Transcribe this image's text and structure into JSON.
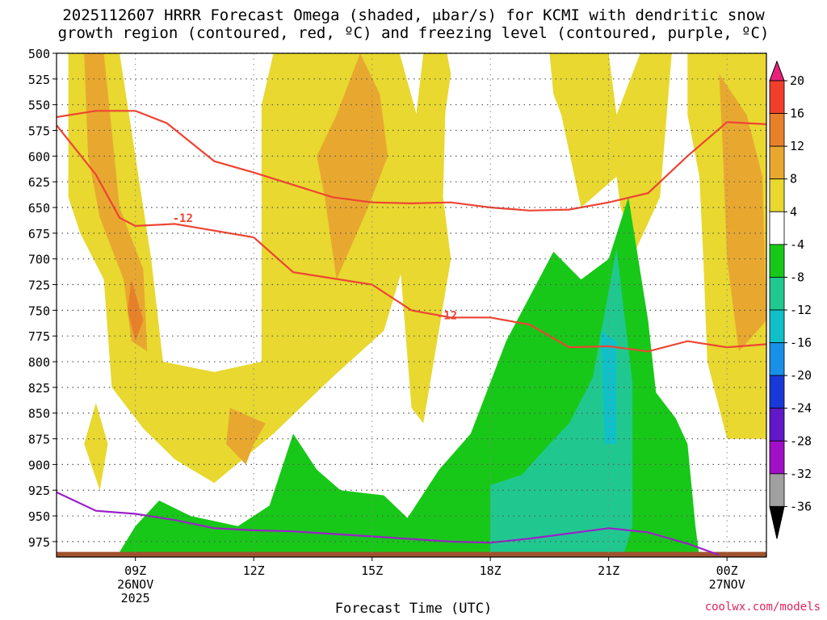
{
  "chart_data": {
    "type": "area",
    "title_line1": "2025112607 HRRR Forecast Omega (shaded, μbar/s) for KCMI with dendritic snow",
    "title_line2": "growth region (contoured, red, ºC) and freezing level (contoured, purple, ºC)",
    "xlabel": "Forecast Time (UTC)",
    "x_ticks": [
      {
        "hour": 9,
        "label": "09Z",
        "date": "26NOV",
        "year": "2025"
      },
      {
        "hour": 12,
        "label": "12Z"
      },
      {
        "hour": 15,
        "label": "15Z"
      },
      {
        "hour": 18,
        "label": "18Z"
      },
      {
        "hour": 21,
        "label": "21Z"
      },
      {
        "hour": 24,
        "label": "00Z",
        "date": "27NOV"
      }
    ],
    "xlim_hours": [
      7,
      25
    ],
    "y_axis": "pressure (mb)",
    "y_ticks": [
      500,
      525,
      550,
      575,
      600,
      625,
      650,
      675,
      700,
      725,
      750,
      775,
      800,
      825,
      850,
      875,
      900,
      925,
      950,
      975
    ],
    "ylim": [
      500,
      990
    ],
    "grid": true,
    "colorbar": {
      "labels": [
        "20",
        "16",
        "12",
        "8",
        "4",
        "-4",
        "-8",
        "-12",
        "-16",
        "-20",
        "-24",
        "-28",
        "-32",
        "-36"
      ],
      "colors": [
        "#e8207a",
        "#f0402a",
        "#e8802a",
        "#e8a830",
        "#e8d830",
        "#ffffff",
        "#18c818",
        "#20c890",
        "#10c0c8",
        "#1890e8",
        "#1838d8",
        "#6018c8",
        "#a010c8",
        "#a0a0a0",
        "#000000"
      ]
    },
    "dgz_label": "-12",
    "dgz_upper_c": [
      [
        7,
        562
      ],
      [
        8,
        556
      ],
      [
        9,
        556
      ],
      [
        9.8,
        568
      ],
      [
        11,
        605
      ],
      [
        12,
        616
      ],
      [
        14,
        640
      ],
      [
        15,
        645
      ],
      [
        16,
        646
      ],
      [
        17,
        645
      ],
      [
        18,
        650
      ],
      [
        19,
        653
      ],
      [
        20,
        652
      ],
      [
        21,
        645
      ],
      [
        22,
        636
      ],
      [
        23,
        600
      ],
      [
        24,
        567
      ],
      [
        25,
        569
      ]
    ],
    "dgz_lower_c": [
      [
        7,
        570
      ],
      [
        8,
        618
      ],
      [
        8.6,
        660
      ],
      [
        9,
        668
      ],
      [
        10,
        666
      ],
      [
        12,
        679
      ],
      [
        13,
        713
      ],
      [
        15,
        725
      ],
      [
        16,
        750
      ],
      [
        17,
        757
      ],
      [
        18,
        757
      ],
      [
        19,
        764
      ],
      [
        20,
        786
      ],
      [
        21,
        785
      ],
      [
        22,
        790
      ],
      [
        23,
        780
      ],
      [
        24,
        786
      ],
      [
        25,
        783
      ]
    ],
    "freezing_level": [
      [
        7,
        927
      ],
      [
        8,
        945
      ],
      [
        9,
        948
      ],
      [
        10,
        954
      ],
      [
        11,
        962
      ],
      [
        12,
        964
      ],
      [
        13,
        965
      ],
      [
        15,
        970
      ],
      [
        17,
        975
      ],
      [
        18,
        976
      ],
      [
        19,
        972
      ],
      [
        21,
        962
      ],
      [
        22,
        966
      ],
      [
        23,
        977
      ],
      [
        23.8,
        988
      ]
    ],
    "omega_regions": [
      {
        "value": 4,
        "color": "#e8d830",
        "points": [
          [
            7.3,
            500
          ],
          [
            8.6,
            500
          ],
          [
            9.4,
            700
          ],
          [
            9.7,
            800
          ],
          [
            11,
            810
          ],
          [
            12.2,
            800
          ],
          [
            12.2,
            550
          ],
          [
            12.5,
            500
          ],
          [
            15.7,
            500
          ],
          [
            16.6,
            625
          ],
          [
            17,
            520
          ],
          [
            16.9,
            500
          ],
          [
            16.2,
            640
          ],
          [
            16,
            680
          ],
          [
            15.3,
            770
          ],
          [
            14,
            815
          ],
          [
            12.5,
            870
          ],
          [
            11,
            918
          ],
          [
            10,
            895
          ],
          [
            9.2,
            865
          ],
          [
            8.4,
            825
          ],
          [
            8.2,
            720
          ],
          [
            7.6,
            675
          ],
          [
            7.3,
            640
          ]
        ]
      },
      {
        "value": 4,
        "color": "#e8d830",
        "points": [
          [
            16.3,
            500
          ],
          [
            16.9,
            500
          ],
          [
            16.8,
            640
          ],
          [
            17,
            700
          ],
          [
            16.3,
            860
          ],
          [
            16,
            845
          ],
          [
            15.7,
            700
          ]
        ]
      },
      {
        "value": 4,
        "color": "#e8d830",
        "points": [
          [
            8,
            840
          ],
          [
            8.3,
            880
          ],
          [
            8.1,
            925
          ],
          [
            7.7,
            880
          ]
        ]
      },
      {
        "value": 4,
        "color": "#e8d830",
        "points": [
          [
            19.5,
            500
          ],
          [
            21,
            500
          ],
          [
            21.2,
            560
          ],
          [
            21.8,
            500
          ],
          [
            22.6,
            500
          ],
          [
            22.3,
            640
          ],
          [
            21.7,
            690
          ],
          [
            21.3,
            650
          ],
          [
            21.2,
            620
          ],
          [
            20.3,
            650
          ],
          [
            19.8,
            560
          ],
          [
            19.6,
            540
          ]
        ]
      },
      {
        "value": 4,
        "color": "#e8d830",
        "points": [
          [
            23,
            500
          ],
          [
            25,
            500
          ],
          [
            25,
            875
          ],
          [
            24,
            875
          ],
          [
            23.5,
            800
          ],
          [
            23.4,
            700
          ],
          [
            23.3,
            620
          ],
          [
            23,
            560
          ]
        ]
      },
      {
        "value": 8,
        "color": "#e8a830",
        "points": [
          [
            7.7,
            500
          ],
          [
            8.2,
            500
          ],
          [
            8.6,
            650
          ],
          [
            9.2,
            710
          ],
          [
            9.3,
            790
          ],
          [
            8.9,
            780
          ],
          [
            8.7,
            720
          ],
          [
            8.3,
            680
          ],
          [
            8.1,
            660
          ],
          [
            7.8,
            600
          ]
        ]
      },
      {
        "value": 8,
        "color": "#e8a830",
        "points": [
          [
            14.7,
            500
          ],
          [
            15.2,
            540
          ],
          [
            15.4,
            600
          ],
          [
            14.9,
            650
          ],
          [
            14.1,
            720
          ],
          [
            13.8,
            640
          ],
          [
            13.6,
            600
          ],
          [
            14.1,
            560
          ]
        ]
      },
      {
        "value": 8,
        "color": "#e8a830",
        "points": [
          [
            11.4,
            845
          ],
          [
            12.3,
            860
          ],
          [
            12,
            880
          ],
          [
            11.8,
            900
          ],
          [
            11.3,
            880
          ]
        ]
      },
      {
        "value": 8,
        "color": "#e8a830",
        "points": [
          [
            23.8,
            520
          ],
          [
            24.5,
            560
          ],
          [
            24.9,
            620
          ],
          [
            25,
            760
          ],
          [
            24.3,
            790
          ],
          [
            24,
            700
          ],
          [
            23.9,
            600
          ]
        ]
      },
      {
        "value": 12,
        "color": "#e8802a",
        "points": [
          [
            8.9,
            720
          ],
          [
            9.2,
            760
          ],
          [
            9,
            780
          ],
          [
            8.8,
            750
          ]
        ]
      },
      {
        "value": -4,
        "color": "#18c818",
        "points": [
          [
            8.6,
            985
          ],
          [
            9,
            960
          ],
          [
            9.6,
            935
          ],
          [
            10.4,
            950
          ],
          [
            11.6,
            960
          ],
          [
            12.4,
            940
          ],
          [
            13,
            870
          ],
          [
            13.6,
            905
          ],
          [
            14.2,
            925
          ],
          [
            15.3,
            930
          ],
          [
            15.9,
            952
          ],
          [
            16.7,
            905
          ],
          [
            17.5,
            870
          ],
          [
            18.4,
            780
          ],
          [
            19.6,
            693
          ],
          [
            20.3,
            720
          ],
          [
            21,
            700
          ],
          [
            21.5,
            640
          ],
          [
            22,
            760
          ],
          [
            22.2,
            830
          ],
          [
            22.7,
            855
          ],
          [
            23,
            880
          ],
          [
            23.2,
            960
          ],
          [
            23.3,
            990
          ],
          [
            22,
            990
          ],
          [
            20,
            990
          ],
          [
            18,
            990
          ],
          [
            15,
            990
          ],
          [
            12,
            990
          ],
          [
            9,
            990
          ]
        ]
      },
      {
        "value": -8,
        "color": "#20c890",
        "points": [
          [
            18,
            920
          ],
          [
            18.8,
            910
          ],
          [
            19.5,
            880
          ],
          [
            20,
            860
          ],
          [
            20.6,
            815
          ],
          [
            21.2,
            690
          ],
          [
            21.6,
            820
          ],
          [
            21.6,
            960
          ],
          [
            21.4,
            985
          ],
          [
            18,
            985
          ]
        ]
      },
      {
        "value": -12,
        "color": "#10c0c8",
        "points": [
          [
            20.8,
            770
          ],
          [
            21.2,
            780
          ],
          [
            21.2,
            880
          ],
          [
            20.9,
            880
          ]
        ]
      }
    ]
  }
}
